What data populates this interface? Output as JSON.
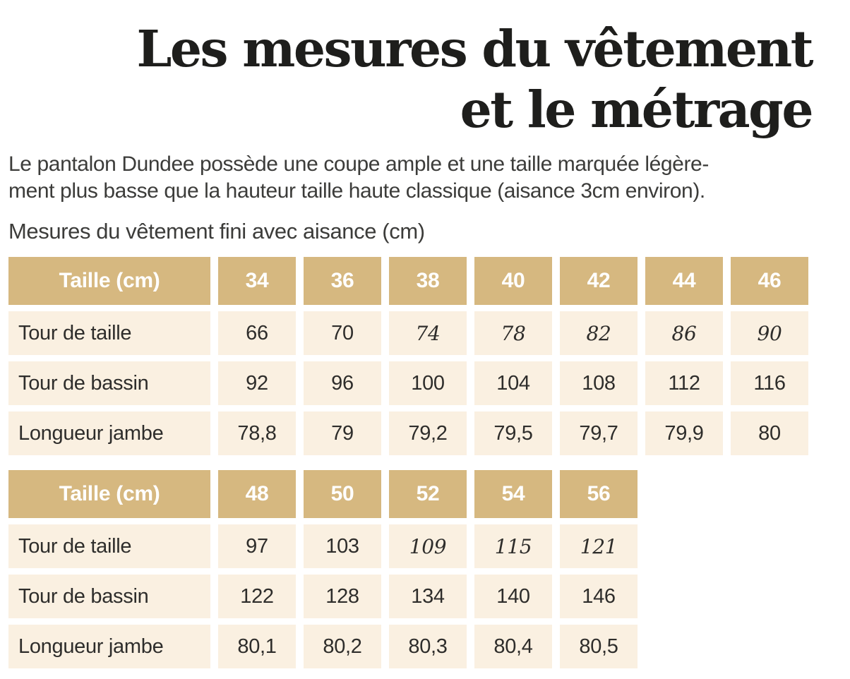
{
  "page": {
    "title": {
      "line1": "Les mesures du vêtement",
      "line2": "et le métrage"
    },
    "intro_lines": [
      "Le pantalon Dundee possède une coupe ample et une taille marquée légère-",
      "ment plus basse que la hauteur taille haute classique (aisance 3cm environ)."
    ],
    "section_heading": "Mesures du vêtement fini avec aisance (cm)"
  },
  "colors": {
    "table_header_bg": "#d6b880",
    "table_row_bg": "#faf0e1",
    "table_header_text": "#ffffff",
    "table_text": "#2e2d2b",
    "title_text": "#1e1e1c",
    "body_text": "#3c3c3a"
  },
  "tables": [
    {
      "name": "sizes-34-46",
      "header": [
        "Taille (cm)",
        "34",
        "36",
        "38",
        "40",
        "42",
        "44",
        "46"
      ],
      "rows": [
        {
          "label": "Tour de taille",
          "values": [
            "66",
            "70",
            "74",
            "78",
            "82",
            "86",
            "90"
          ],
          "italics": [
            false,
            false,
            true,
            true,
            true,
            true,
            true
          ]
        },
        {
          "label": "Tour de bassin",
          "values": [
            "92",
            "96",
            "100",
            "104",
            "108",
            "112",
            "116"
          ],
          "italics": [
            false,
            false,
            false,
            false,
            false,
            false,
            false
          ]
        },
        {
          "label": "Longueur jambe",
          "values": [
            "78,8",
            "79",
            "79,2",
            "79,5",
            "79,7",
            "79,9",
            "80"
          ],
          "italics": [
            false,
            false,
            false,
            false,
            false,
            false,
            false
          ]
        }
      ]
    },
    {
      "name": "sizes-48-56",
      "header": [
        "Taille (cm)",
        "48",
        "50",
        "52",
        "54",
        "56"
      ],
      "rows": [
        {
          "label": "Tour de taille",
          "values": [
            "97",
            "103",
            "109",
            "115",
            "121"
          ],
          "italics": [
            false,
            false,
            true,
            true,
            true
          ]
        },
        {
          "label": "Tour de bassin",
          "values": [
            "122",
            "128",
            "134",
            "140",
            "146"
          ],
          "italics": [
            false,
            false,
            false,
            false,
            false
          ]
        },
        {
          "label": "Longueur jambe",
          "values": [
            "80,1",
            "80,2",
            "80,3",
            "80,4",
            "80,5"
          ],
          "italics": [
            false,
            false,
            false,
            false,
            false
          ]
        }
      ]
    }
  ]
}
